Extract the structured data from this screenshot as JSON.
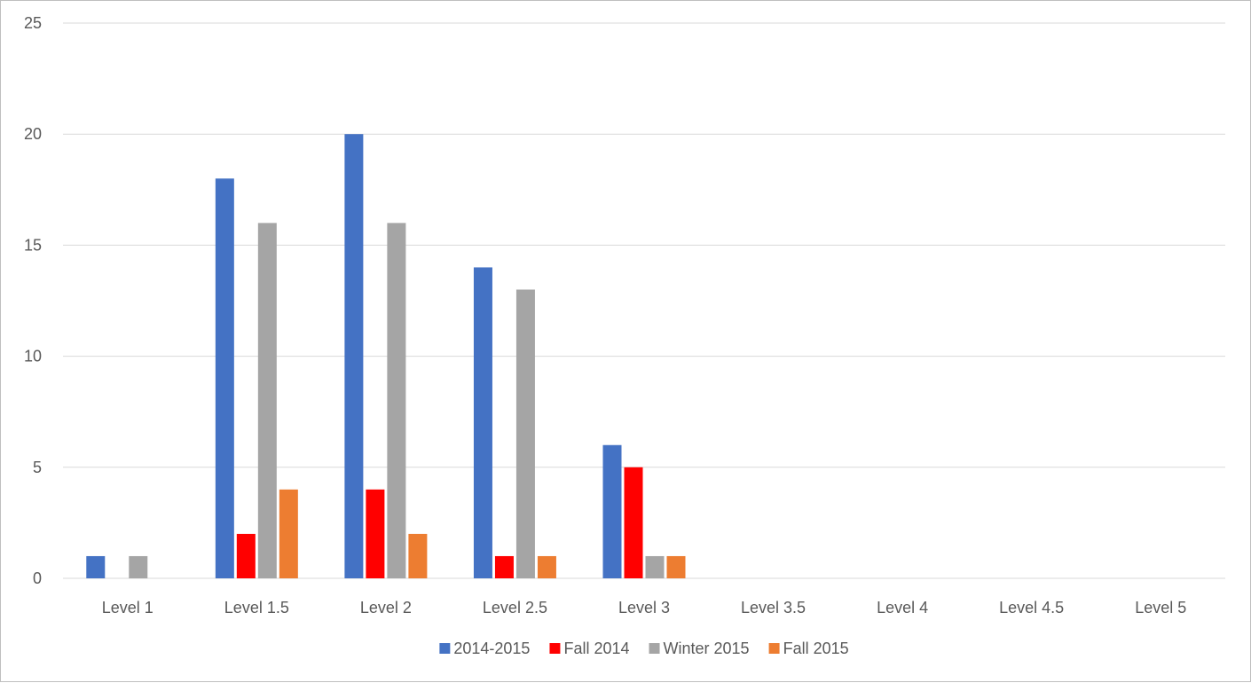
{
  "chart_data": {
    "type": "bar",
    "title": "",
    "xlabel": "",
    "ylabel": "",
    "categories": [
      "Level 1",
      "Level 1.5",
      "Level 2",
      "Level 2.5",
      "Level 3",
      "Level 3.5",
      "Level 4",
      "Level 4.5",
      "Level 5"
    ],
    "ylim": [
      0,
      25
    ],
    "yticks": [
      "0",
      "5",
      "10",
      "15",
      "20",
      "25"
    ],
    "grid": true,
    "legend_position": "bottom",
    "series": [
      {
        "name": "2014-2015",
        "color": "#4472c4",
        "values": [
          1,
          18,
          20,
          14,
          6,
          0,
          0,
          0,
          0
        ]
      },
      {
        "name": "Fall 2014",
        "color": "#ff0000",
        "values": [
          0,
          2,
          4,
          1,
          5,
          0,
          0,
          0,
          0
        ]
      },
      {
        "name": "Winter 2015",
        "color": "#a5a5a5",
        "values": [
          1,
          16,
          16,
          13,
          1,
          0,
          0,
          0,
          0
        ]
      },
      {
        "name": "Fall 2015",
        "color": "#ed7d31",
        "values": [
          0,
          4,
          2,
          1,
          1,
          0,
          0,
          0,
          0
        ]
      }
    ]
  }
}
